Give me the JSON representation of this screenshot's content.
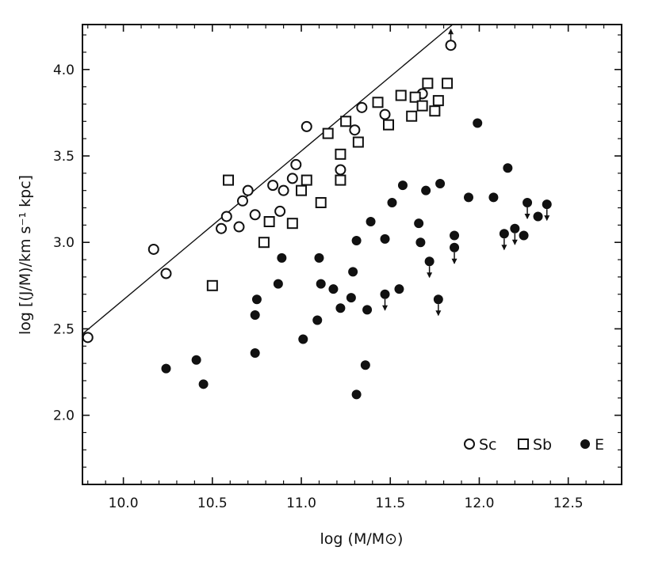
{
  "chart_data": {
    "type": "scatter",
    "xlabel": "log (M/M⊙)",
    "ylabel": "log [(J/M)/km s⁻¹ kpc]",
    "xlim": [
      9.77,
      12.8
    ],
    "ylim": [
      1.6,
      4.26
    ],
    "x_ticks": [
      10.0,
      10.5,
      11.0,
      11.5,
      12.0,
      12.5
    ],
    "x_tick_labels": [
      "10.0",
      "10.5",
      "11.0",
      "11.5",
      "12.0",
      "12.5"
    ],
    "y_ticks": [
      2.0,
      2.5,
      3.0,
      3.5,
      4.0
    ],
    "y_tick_labels": [
      "2.0",
      "2.5",
      "3.0",
      "3.5",
      "4.0"
    ],
    "grid": false,
    "legend_position": "bottom-right",
    "fit_line": {
      "x": [
        9.77,
        11.85
      ],
      "y": [
        2.47,
        4.26
      ]
    },
    "series": [
      {
        "name": "Sc",
        "marker": "open-circle",
        "points": [
          {
            "x": 9.8,
            "y": 2.45
          },
          {
            "x": 10.17,
            "y": 2.96
          },
          {
            "x": 10.24,
            "y": 2.82
          },
          {
            "x": 10.55,
            "y": 3.08
          },
          {
            "x": 10.58,
            "y": 3.15
          },
          {
            "x": 10.65,
            "y": 3.09
          },
          {
            "x": 10.67,
            "y": 3.24
          },
          {
            "x": 10.7,
            "y": 3.3
          },
          {
            "x": 10.74,
            "y": 3.16
          },
          {
            "x": 10.84,
            "y": 3.33
          },
          {
            "x": 10.88,
            "y": 3.18
          },
          {
            "x": 10.9,
            "y": 3.3
          },
          {
            "x": 10.95,
            "y": 3.37
          },
          {
            "x": 10.97,
            "y": 3.45
          },
          {
            "x": 11.03,
            "y": 3.67
          },
          {
            "x": 11.22,
            "y": 3.42
          },
          {
            "x": 11.3,
            "y": 3.65
          },
          {
            "x": 11.34,
            "y": 3.78
          },
          {
            "x": 11.47,
            "y": 3.74
          },
          {
            "x": 11.68,
            "y": 3.86
          },
          {
            "x": 11.84,
            "y": 4.14,
            "limit": "up"
          }
        ]
      },
      {
        "name": "Sb",
        "marker": "open-square",
        "points": [
          {
            "x": 10.5,
            "y": 2.75
          },
          {
            "x": 10.59,
            "y": 3.36
          },
          {
            "x": 10.79,
            "y": 3.0
          },
          {
            "x": 10.82,
            "y": 3.12
          },
          {
            "x": 10.95,
            "y": 3.11
          },
          {
            "x": 11.0,
            "y": 3.3
          },
          {
            "x": 11.03,
            "y": 3.36
          },
          {
            "x": 11.11,
            "y": 3.23
          },
          {
            "x": 11.15,
            "y": 3.63
          },
          {
            "x": 11.22,
            "y": 3.36
          },
          {
            "x": 11.22,
            "y": 3.51
          },
          {
            "x": 11.25,
            "y": 3.7
          },
          {
            "x": 11.32,
            "y": 3.58
          },
          {
            "x": 11.43,
            "y": 3.81
          },
          {
            "x": 11.49,
            "y": 3.68
          },
          {
            "x": 11.56,
            "y": 3.85
          },
          {
            "x": 11.62,
            "y": 3.73
          },
          {
            "x": 11.64,
            "y": 3.84
          },
          {
            "x": 11.68,
            "y": 3.79
          },
          {
            "x": 11.71,
            "y": 3.92
          },
          {
            "x": 11.75,
            "y": 3.76
          },
          {
            "x": 11.77,
            "y": 3.82
          },
          {
            "x": 11.82,
            "y": 3.92
          }
        ]
      },
      {
        "name": "E",
        "marker": "filled-circle",
        "points": [
          {
            "x": 10.24,
            "y": 2.27
          },
          {
            "x": 10.41,
            "y": 2.32
          },
          {
            "x": 10.45,
            "y": 2.18
          },
          {
            "x": 10.74,
            "y": 2.36
          },
          {
            "x": 10.74,
            "y": 2.58
          },
          {
            "x": 10.75,
            "y": 2.67
          },
          {
            "x": 10.87,
            "y": 2.76
          },
          {
            "x": 10.89,
            "y": 2.91
          },
          {
            "x": 11.01,
            "y": 2.44
          },
          {
            "x": 11.09,
            "y": 2.55
          },
          {
            "x": 11.1,
            "y": 2.91
          },
          {
            "x": 11.11,
            "y": 2.76
          },
          {
            "x": 11.18,
            "y": 2.73
          },
          {
            "x": 11.22,
            "y": 2.62
          },
          {
            "x": 11.28,
            "y": 2.68
          },
          {
            "x": 11.29,
            "y": 2.83
          },
          {
            "x": 11.31,
            "y": 3.01
          },
          {
            "x": 11.31,
            "y": 2.12
          },
          {
            "x": 11.36,
            "y": 2.29
          },
          {
            "x": 11.37,
            "y": 2.61
          },
          {
            "x": 11.39,
            "y": 3.12
          },
          {
            "x": 11.47,
            "y": 3.02
          },
          {
            "x": 11.47,
            "y": 2.7,
            "limit": "down"
          },
          {
            "x": 11.51,
            "y": 3.23
          },
          {
            "x": 11.55,
            "y": 2.73
          },
          {
            "x": 11.57,
            "y": 3.33
          },
          {
            "x": 11.66,
            "y": 3.11
          },
          {
            "x": 11.67,
            "y": 3.0
          },
          {
            "x": 11.7,
            "y": 3.3
          },
          {
            "x": 11.72,
            "y": 2.89,
            "limit": "down"
          },
          {
            "x": 11.77,
            "y": 2.67,
            "limit": "down"
          },
          {
            "x": 11.78,
            "y": 3.34
          },
          {
            "x": 11.86,
            "y": 3.04
          },
          {
            "x": 11.86,
            "y": 2.97,
            "limit": "down"
          },
          {
            "x": 11.94,
            "y": 3.26
          },
          {
            "x": 11.99,
            "y": 3.69
          },
          {
            "x": 12.08,
            "y": 3.26
          },
          {
            "x": 12.14,
            "y": 3.05,
            "limit": "down"
          },
          {
            "x": 12.16,
            "y": 3.43
          },
          {
            "x": 12.2,
            "y": 3.08,
            "limit": "down"
          },
          {
            "x": 12.25,
            "y": 3.04
          },
          {
            "x": 12.27,
            "y": 3.23,
            "limit": "down"
          },
          {
            "x": 12.33,
            "y": 3.15
          },
          {
            "x": 12.38,
            "y": 3.22,
            "limit": "down"
          }
        ]
      }
    ]
  }
}
